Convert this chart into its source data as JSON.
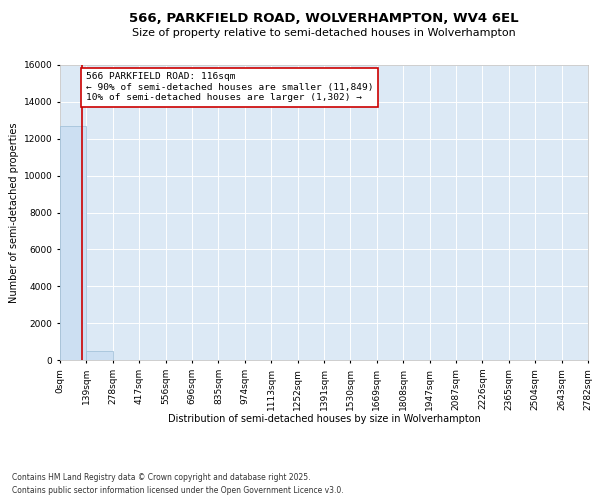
{
  "title": "566, PARKFIELD ROAD, WOLVERHAMPTON, WV4 6EL",
  "subtitle": "Size of property relative to semi-detached houses in Wolverhampton",
  "xlabel": "Distribution of semi-detached houses by size in Wolverhampton",
  "ylabel": "Number of semi-detached properties",
  "footnote1": "Contains HM Land Registry data © Crown copyright and database right 2025.",
  "footnote2": "Contains public sector information licensed under the Open Government Licence v3.0.",
  "property_size": 116,
  "property_label": "566 PARKFIELD ROAD: 116sqm",
  "pct_smaller_label": "← 90% of semi-detached houses are smaller (11,849)",
  "pct_larger_label": "10% of semi-detached houses are larger (1,302) →",
  "bin_edges": [
    0,
    139,
    278,
    417,
    556,
    696,
    835,
    974,
    1113,
    1252,
    1391,
    1530,
    1669,
    1808,
    1947,
    2087,
    2226,
    2365,
    2504,
    2643,
    2782
  ],
  "bin_labels": [
    "0sqm",
    "139sqm",
    "278sqm",
    "417sqm",
    "556sqm",
    "696sqm",
    "835sqm",
    "974sqm",
    "1113sqm",
    "1252sqm",
    "1391sqm",
    "1530sqm",
    "1669sqm",
    "1808sqm",
    "1947sqm",
    "2087sqm",
    "2226sqm",
    "2365sqm",
    "2504sqm",
    "2643sqm",
    "2782sqm"
  ],
  "bar_counts": [
    12700,
    500,
    5,
    2,
    1,
    1,
    0,
    0,
    0,
    0,
    0,
    0,
    0,
    0,
    0,
    0,
    0,
    0,
    0,
    0
  ],
  "bar_color": "#ccdff2",
  "bar_edge_color": "#9bbdd6",
  "vline_color": "#cc0000",
  "annotation_box_color": "#cc0000",
  "background_color": "#dce9f5",
  "grid_color": "#ffffff",
  "ylim": [
    0,
    16000
  ],
  "yticks": [
    0,
    2000,
    4000,
    6000,
    8000,
    10000,
    12000,
    14000,
    16000
  ],
  "title_fontsize": 9.5,
  "subtitle_fontsize": 8.0,
  "axis_label_fontsize": 7.0,
  "tick_fontsize": 6.5,
  "annotation_fontsize": 6.8,
  "footnote_fontsize": 5.5
}
